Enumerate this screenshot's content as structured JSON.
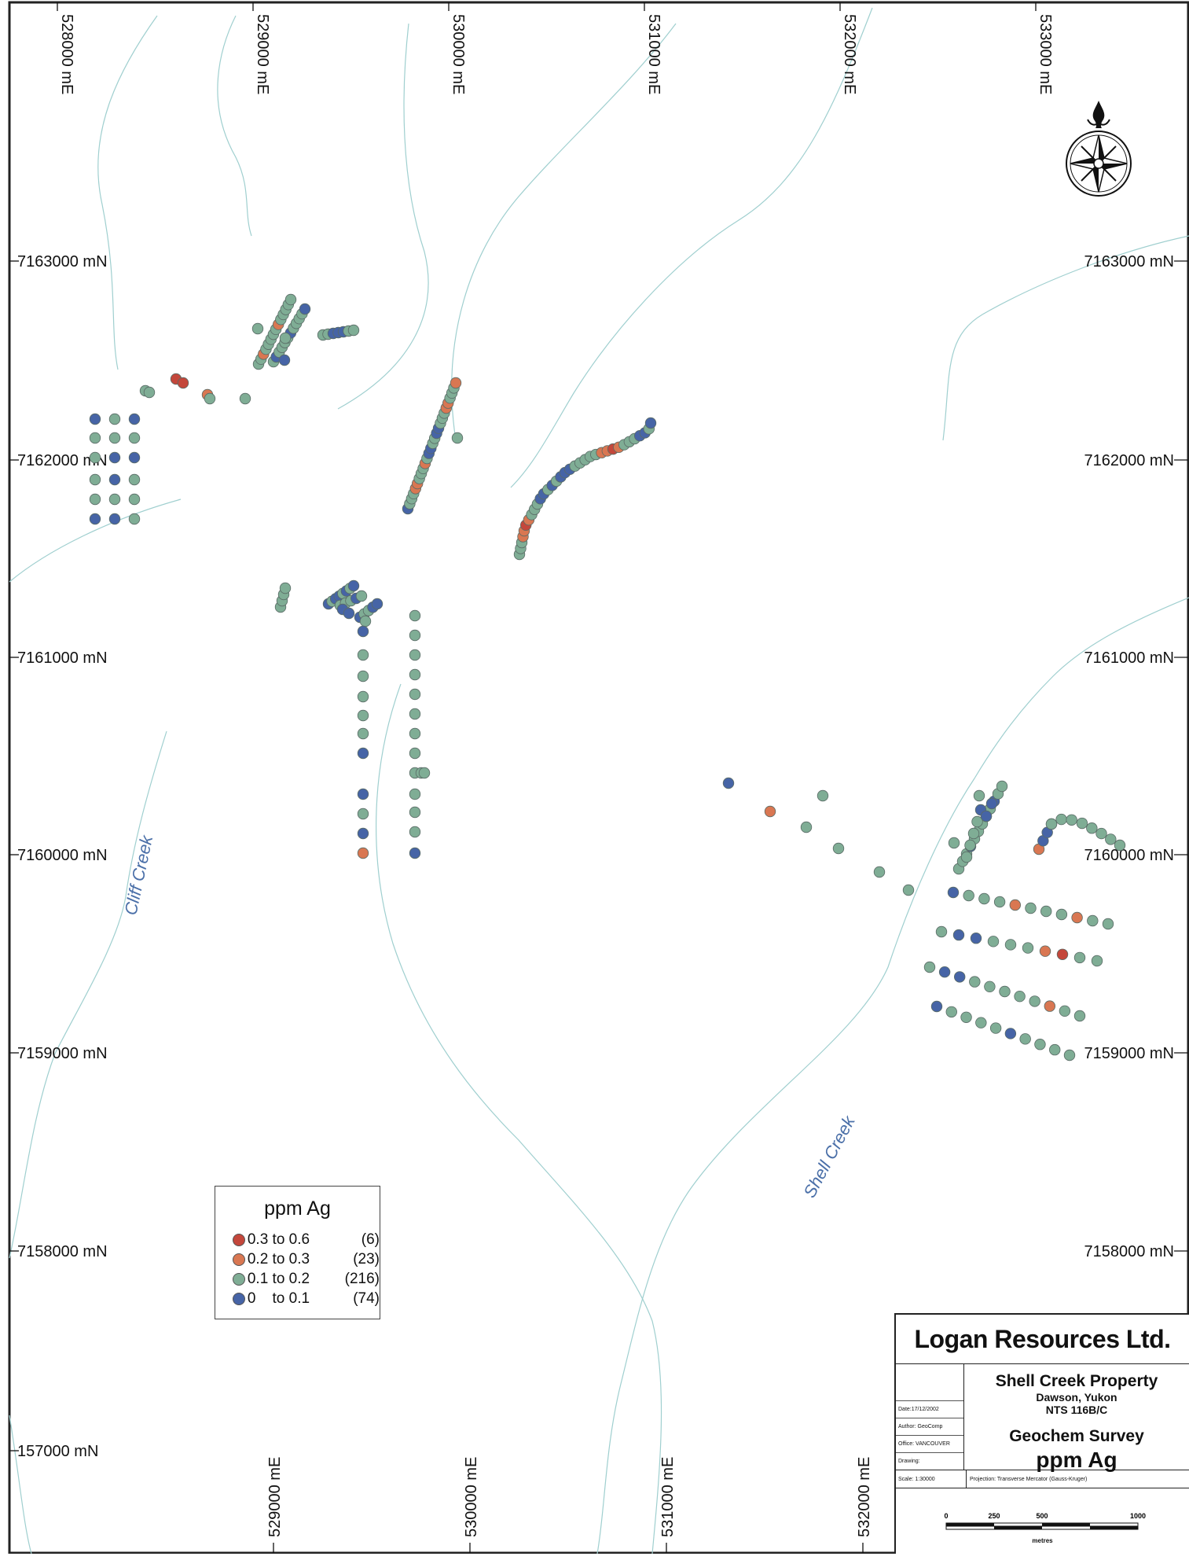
{
  "grid": {
    "top_easting": [
      "528000 mE",
      "529000 mE",
      "530000 mE",
      "531000 mE",
      "532000 mE",
      "533000 mE"
    ],
    "bottom_easting": [
      "529000 mE",
      "530000 mE",
      "531000 mE",
      "532000 mE"
    ],
    "left_northing": [
      "7163000 mN",
      "7162000 mN",
      "7161000 mN",
      "7160000 mN",
      "7159000 mN",
      "7158000 mN",
      "157000 mN"
    ],
    "right_northing": [
      "7163000 mN",
      "7162000 mN",
      "7161000 mN",
      "7160000 mN",
      "7159000 mN",
      "7158000 mN"
    ]
  },
  "creeks": {
    "cliff": "Cliff Creek",
    "shell": "Shell Creek"
  },
  "legend": {
    "title": "ppm Ag",
    "classes": [
      {
        "range": "0.3 to 0.6",
        "count": "(6)",
        "color": "#c4473b"
      },
      {
        "range": "0.2 to 0.3",
        "count": "(23)",
        "color": "#d97752"
      },
      {
        "range": "0.1 to 0.2",
        "count": "(216)",
        "color": "#7fad95"
      },
      {
        "range": "0    to 0.1",
        "count": "(74)",
        "color": "#4664a6"
      }
    ]
  },
  "title_block": {
    "company": "Logan Resources Ltd.",
    "property": "Shell Creek Property",
    "location": "Dawson, Yukon",
    "nts": "NTS 116B/C",
    "survey": "Geochem Survey",
    "element": "ppm Ag",
    "date": "Date:17/12/2002",
    "author": "Author: GeoComp",
    "office": "Office: VANCOUVER",
    "drawing": "Drawing:",
    "scale": "Scale: 1:30000",
    "projection": "Projection: Transverse Mercator (Gauss-Kruger)",
    "scalebar_ticks": [
      "0",
      "250",
      "500",
      "1000"
    ],
    "scalebar_units": "metres"
  },
  "colors": {
    "red": "#c4473b",
    "orange": "#d97752",
    "green": "#7fad95",
    "blue": "#4664a6",
    "creek": "#9fcfcf"
  }
}
